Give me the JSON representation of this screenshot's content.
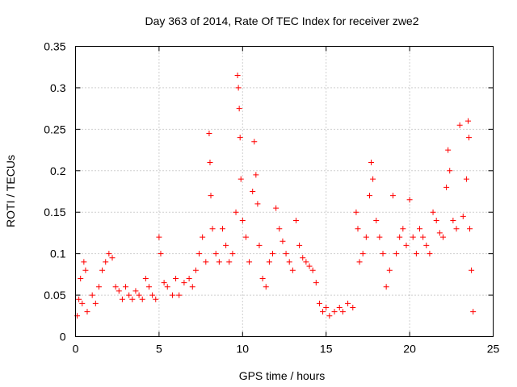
{
  "chart_data": {
    "type": "scatter",
    "title": "Day 363 of 2014, Rate Of TEC Index for receiver zwe2",
    "xlabel": "GPS time / hours",
    "ylabel": "ROTI / TECUs",
    "xlim": [
      0,
      25
    ],
    "ylim": [
      0,
      0.35
    ],
    "xticks": [
      0,
      5,
      10,
      15,
      20,
      25
    ],
    "xtick_labels": [
      "0",
      "5",
      "10",
      "15",
      "20",
      "25"
    ],
    "yticks": [
      0,
      0.05,
      0.1,
      0.15,
      0.2,
      0.25,
      0.3,
      0.35
    ],
    "ytick_labels": [
      "0",
      "0.05",
      "0.1",
      "0.15",
      "0.2",
      "0.25",
      "0.3",
      "0.35"
    ],
    "grid": true,
    "marker": "+",
    "color": "#ff0000",
    "series": [
      {
        "name": "ROTI",
        "points": [
          [
            0.1,
            0.025
          ],
          [
            0.2,
            0.045
          ],
          [
            0.3,
            0.07
          ],
          [
            0.4,
            0.04
          ],
          [
            0.5,
            0.09
          ],
          [
            0.6,
            0.08
          ],
          [
            0.7,
            0.03
          ],
          [
            1.0,
            0.05
          ],
          [
            1.2,
            0.04
          ],
          [
            1.4,
            0.06
          ],
          [
            1.6,
            0.08
          ],
          [
            1.8,
            0.09
          ],
          [
            2.0,
            0.1
          ],
          [
            2.2,
            0.095
          ],
          [
            2.4,
            0.06
          ],
          [
            2.6,
            0.055
          ],
          [
            2.8,
            0.045
          ],
          [
            3.0,
            0.06
          ],
          [
            3.2,
            0.05
          ],
          [
            3.4,
            0.045
          ],
          [
            3.6,
            0.055
          ],
          [
            3.8,
            0.05
          ],
          [
            4.0,
            0.045
          ],
          [
            4.2,
            0.07
          ],
          [
            4.4,
            0.06
          ],
          [
            4.6,
            0.05
          ],
          [
            4.8,
            0.045
          ],
          [
            5.0,
            0.12
          ],
          [
            5.1,
            0.1
          ],
          [
            5.3,
            0.065
          ],
          [
            5.5,
            0.06
          ],
          [
            5.8,
            0.05
          ],
          [
            6.0,
            0.07
          ],
          [
            6.2,
            0.05
          ],
          [
            6.5,
            0.065
          ],
          [
            6.8,
            0.07
          ],
          [
            7.0,
            0.06
          ],
          [
            7.2,
            0.08
          ],
          [
            7.4,
            0.1
          ],
          [
            7.6,
            0.12
          ],
          [
            7.8,
            0.09
          ],
          [
            8.0,
            0.245
          ],
          [
            8.05,
            0.21
          ],
          [
            8.1,
            0.17
          ],
          [
            8.2,
            0.13
          ],
          [
            8.4,
            0.1
          ],
          [
            8.6,
            0.09
          ],
          [
            8.8,
            0.13
          ],
          [
            9.0,
            0.11
          ],
          [
            9.2,
            0.09
          ],
          [
            9.4,
            0.1
          ],
          [
            9.6,
            0.15
          ],
          [
            9.7,
            0.315
          ],
          [
            9.75,
            0.3
          ],
          [
            9.8,
            0.275
          ],
          [
            9.85,
            0.24
          ],
          [
            9.9,
            0.19
          ],
          [
            10.0,
            0.14
          ],
          [
            10.2,
            0.12
          ],
          [
            10.4,
            0.09
          ],
          [
            10.6,
            0.175
          ],
          [
            10.7,
            0.235
          ],
          [
            10.8,
            0.195
          ],
          [
            10.9,
            0.16
          ],
          [
            11.0,
            0.11
          ],
          [
            11.2,
            0.07
          ],
          [
            11.4,
            0.06
          ],
          [
            11.6,
            0.09
          ],
          [
            11.8,
            0.1
          ],
          [
            12.0,
            0.155
          ],
          [
            12.2,
            0.13
          ],
          [
            12.4,
            0.115
          ],
          [
            12.6,
            0.1
          ],
          [
            12.8,
            0.09
          ],
          [
            13.0,
            0.08
          ],
          [
            13.2,
            0.14
          ],
          [
            13.4,
            0.11
          ],
          [
            13.6,
            0.095
          ],
          [
            13.8,
            0.09
          ],
          [
            14.0,
            0.085
          ],
          [
            14.2,
            0.08
          ],
          [
            14.4,
            0.065
          ],
          [
            14.6,
            0.04
          ],
          [
            14.8,
            0.03
          ],
          [
            15.0,
            0.035
          ],
          [
            15.2,
            0.025
          ],
          [
            15.5,
            0.03
          ],
          [
            15.8,
            0.035
          ],
          [
            16.0,
            0.03
          ],
          [
            16.3,
            0.04
          ],
          [
            16.6,
            0.035
          ],
          [
            16.8,
            0.15
          ],
          [
            16.9,
            0.13
          ],
          [
            17.0,
            0.09
          ],
          [
            17.2,
            0.1
          ],
          [
            17.4,
            0.12
          ],
          [
            17.6,
            0.17
          ],
          [
            17.7,
            0.21
          ],
          [
            17.8,
            0.19
          ],
          [
            18.0,
            0.14
          ],
          [
            18.2,
            0.12
          ],
          [
            18.4,
            0.1
          ],
          [
            18.6,
            0.06
          ],
          [
            18.8,
            0.08
          ],
          [
            19.0,
            0.17
          ],
          [
            19.2,
            0.1
          ],
          [
            19.4,
            0.12
          ],
          [
            19.6,
            0.13
          ],
          [
            19.8,
            0.11
          ],
          [
            20.0,
            0.165
          ],
          [
            20.2,
            0.12
          ],
          [
            20.4,
            0.1
          ],
          [
            20.6,
            0.13
          ],
          [
            20.8,
            0.12
          ],
          [
            21.0,
            0.11
          ],
          [
            21.2,
            0.1
          ],
          [
            21.4,
            0.15
          ],
          [
            21.6,
            0.14
          ],
          [
            21.8,
            0.125
          ],
          [
            22.0,
            0.12
          ],
          [
            22.2,
            0.18
          ],
          [
            22.3,
            0.225
          ],
          [
            22.4,
            0.2
          ],
          [
            22.6,
            0.14
          ],
          [
            22.8,
            0.13
          ],
          [
            23.0,
            0.255
          ],
          [
            23.2,
            0.145
          ],
          [
            23.4,
            0.19
          ],
          [
            23.5,
            0.26
          ],
          [
            23.55,
            0.24
          ],
          [
            23.6,
            0.13
          ],
          [
            23.7,
            0.08
          ],
          [
            23.8,
            0.03
          ]
        ]
      }
    ]
  }
}
